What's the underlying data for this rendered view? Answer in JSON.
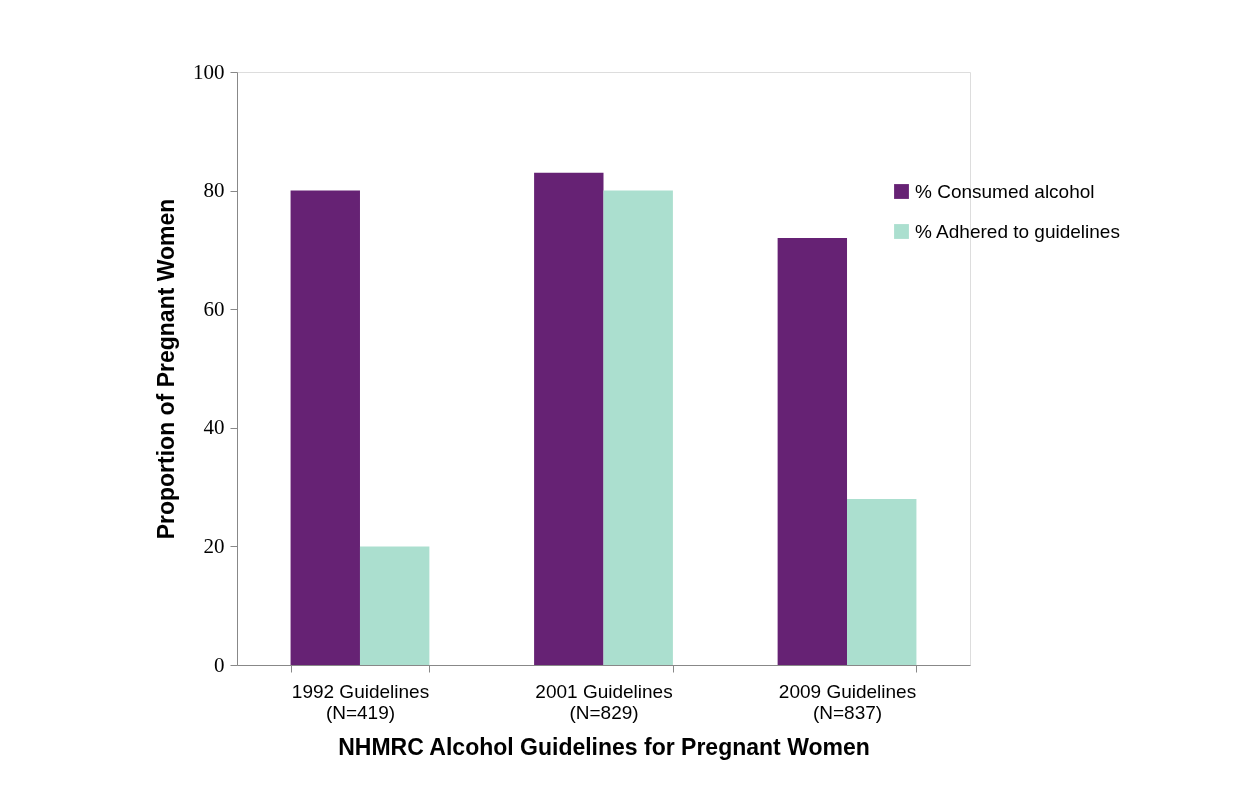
{
  "chart_data": {
    "type": "bar",
    "categories": [
      "1992 Guidelines\n(N=419)",
      "2001 Guidelines\n(N=829)",
      "2009 Guidelines\n(N=837)"
    ],
    "series": [
      {
        "name": "% Consumed alcohol",
        "color": "#662274",
        "values": [
          80,
          83,
          72
        ]
      },
      {
        "name": "% Adhered to guidelines",
        "color": "#abdfcf",
        "values": [
          20,
          80,
          28
        ]
      }
    ],
    "xlabel": "NHMRC Alcohol Guidelines for Pregnant Women",
    "ylabel": "Proportion of Pregnant Women",
    "ylim": [
      0,
      100
    ],
    "yticks": [
      0,
      20,
      40,
      60,
      80,
      100
    ],
    "grid": false,
    "legend": "right"
  }
}
